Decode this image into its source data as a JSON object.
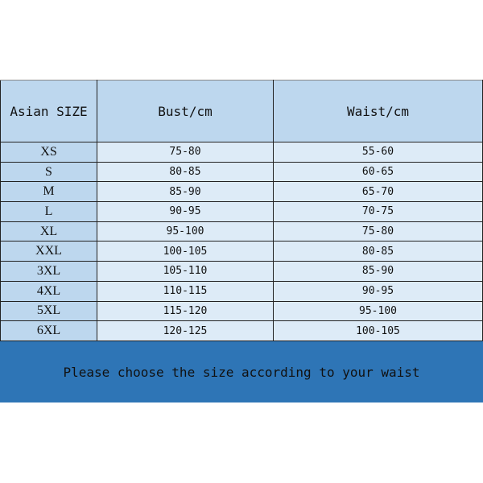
{
  "headers": [
    "Asian SIZE",
    "Bust/cm",
    "Waist/cm"
  ],
  "rows": [
    [
      "XS",
      "75-80",
      "55-60"
    ],
    [
      "S",
      "80-85",
      "60-65"
    ],
    [
      "M",
      "85-90",
      "65-70"
    ],
    [
      "L",
      "90-95",
      "70-75"
    ],
    [
      "XL",
      "95-100",
      "75-80"
    ],
    [
      "XXL",
      "100-105",
      "80-85"
    ],
    [
      "3XL",
      "105-110",
      "85-90"
    ],
    [
      "4XL",
      "110-115",
      "90-95"
    ],
    [
      "5XL",
      "115-120",
      "95-100"
    ],
    [
      "6XL",
      "120-125",
      "100-105"
    ]
  ],
  "note": "Please choose the size according to your waist",
  "colors": {
    "header": "#bdd7ee",
    "cell": "#ddebf7",
    "banner": "#2e75b6"
  }
}
